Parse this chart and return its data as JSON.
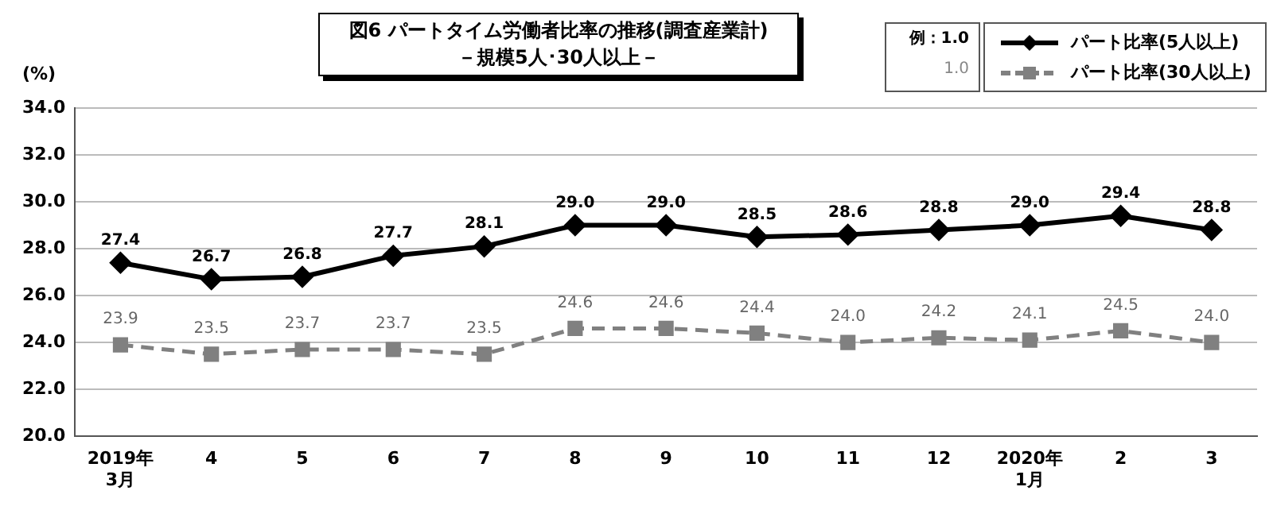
{
  "chart_data": {
    "type": "line",
    "title": "図6  パートタイム労働者比率の推移(調査産業計)",
    "subtitle": "－規模5人･30人以上－",
    "ylabel": "(%)",
    "categories": [
      "2019年\n3月",
      "4",
      "5",
      "6",
      "7",
      "8",
      "9",
      "10",
      "11",
      "12",
      "2020年\n1月",
      "2",
      "3"
    ],
    "series": [
      {
        "name": "パート比率(5人以上)",
        "color": "#000000",
        "marker": "diamond",
        "line_style": "solid",
        "values": [
          27.4,
          26.7,
          26.8,
          27.7,
          28.1,
          29.0,
          29.0,
          28.5,
          28.6,
          28.8,
          29.0,
          29.4,
          28.8
        ],
        "value_labels": [
          "27.4",
          "26.7",
          "26.8",
          "27.7",
          "28.1",
          "29.0",
          "29.0",
          "28.5",
          "28.6",
          "28.8",
          "29.0",
          "29.4",
          "28.8"
        ]
      },
      {
        "name": "パート比率(30人以上)",
        "color": "#808080",
        "marker": "square",
        "line_style": "dashed",
        "values": [
          23.9,
          23.5,
          23.7,
          23.7,
          23.5,
          24.6,
          24.6,
          24.4,
          24.0,
          24.2,
          24.1,
          24.5,
          24.0
        ],
        "value_labels": [
          "23.9",
          "23.5",
          "23.7",
          "23.7",
          "23.5",
          "24.6",
          "24.6",
          "24.4",
          "24.0",
          "24.2",
          "24.1",
          "24.5",
          "24.0"
        ]
      }
    ],
    "ylim": [
      20,
      34
    ],
    "yticks": [
      {
        "value": 20,
        "label": "20.0"
      },
      {
        "value": 22,
        "label": "22.0"
      },
      {
        "value": 24,
        "label": "24.0"
      },
      {
        "value": 26,
        "label": "26.0"
      },
      {
        "value": 28,
        "label": "28.0"
      },
      {
        "value": 30,
        "label": "30.0"
      },
      {
        "value": 32,
        "label": "32.0"
      },
      {
        "value": 34,
        "label": "34.0"
      }
    ],
    "grid": "y",
    "legend": "top right",
    "annotations": [
      "例：1.0",
      "1.0"
    ]
  }
}
